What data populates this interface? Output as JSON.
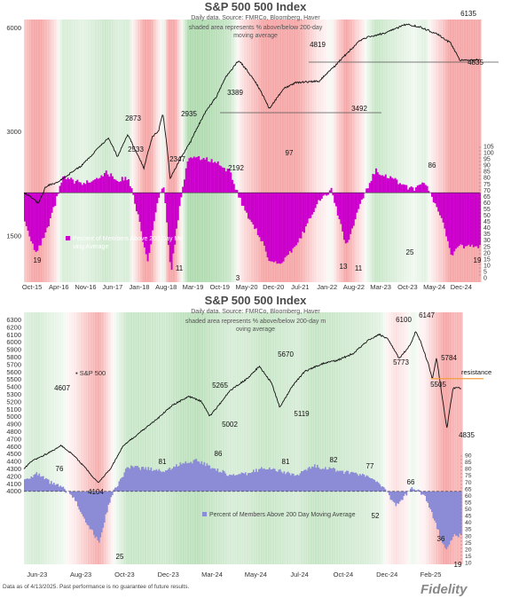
{
  "chart_data": [
    {
      "type": "line",
      "title": "S&P 500 500 Index",
      "subtitle": "Daily data.  Source: FMRCo, Bloomberg, Haver",
      "note": "shaded area represents % above/below 200-day moving average",
      "left_axis_ticks": [
        "6000",
        "3000",
        "1500"
      ],
      "right_axis_ticks": [
        "105",
        "100",
        "95",
        "90",
        "85",
        "80",
        "75",
        "70",
        "65",
        "60",
        "55",
        "50",
        "45",
        "40",
        "35",
        "30",
        "25",
        "20",
        "15",
        "10",
        "5",
        "0"
      ],
      "x_tick_labels": [
        "Oct-15",
        "Apr-16",
        "Nov-16",
        "Jun-17",
        "Jan-18",
        "Aug-18",
        "Mar-19",
        "Oct-19",
        "May-20",
        "Dec-20",
        "Jul-21",
        "Jan-22",
        "Aug-22",
        "Mar-23",
        "Oct-23",
        "May-24",
        "Dec-24"
      ],
      "price_series": {
        "name": "S&P 500",
        "x": [
          0,
          0.5,
          0.75,
          1.2,
          2,
          2.9,
          3.2,
          3.55,
          4.1,
          4.4,
          4.6,
          4.75,
          5,
          5.7,
          6.2,
          6.6,
          6.9,
          7.35,
          7.9,
          8.4,
          8.9,
          9.3,
          10.1,
          10.6,
          11.1,
          11.5,
          11.7,
          12.4,
          13.1,
          13.6,
          14.2,
          14.6,
          14.9
        ],
        "values": [
          2000,
          1860,
          2080,
          2150,
          2400,
          2873,
          2533,
          2935,
          2347,
          2900,
          3000,
          3389,
          2192,
          2800,
          3400,
          3800,
          4300,
          4819,
          4200,
          3492,
          4000,
          4150,
          4200,
          4600,
          5100,
          5500,
          5600,
          5800,
          6135,
          6000,
          5700,
          5400,
          4835
        ]
      },
      "breadth_series": {
        "name": "Percent of Members Above 200 Day Moving Average",
        "x": [
          0,
          0.4,
          0.8,
          1.3,
          2,
          2.8,
          3.2,
          3.55,
          3.9,
          4.2,
          4.5,
          4.75,
          5,
          5.3,
          5.6,
          6.2,
          6.6,
          7,
          7.5,
          8,
          8.4,
          8.8,
          9.4,
          10,
          10.5,
          11,
          11.5,
          12,
          12.5,
          12.9,
          13.3,
          13.7,
          14,
          14.3,
          14.6,
          14.9
        ],
        "values": [
          45,
          19,
          40,
          80,
          75,
          84,
          78,
          80,
          48,
          11,
          55,
          75,
          3,
          58,
          97,
          95,
          92,
          85,
          55,
          35,
          13,
          11,
          30,
          60,
          70,
          25,
          60,
          86,
          80,
          75,
          70,
          76,
          60,
          45,
          19,
          25
        ]
      },
      "annotations": [
        "6135",
        "4819",
        "4835",
        "3389",
        "3492",
        "2873",
        "2935",
        "2533",
        "2347",
        "2192",
        "97",
        "86",
        "19",
        "11",
        "3",
        "13",
        "11",
        "25",
        "19"
      ],
      "legend": "Percent of Members Above 200 Day Moving Average",
      "reference_lines": [
        3400,
        4819
      ]
    },
    {
      "type": "line",
      "title": "S&P 500 500 Index",
      "subtitle": "Daily data.  Source: FMRCo, Bloomberg, Haver",
      "note": "shaded area represents % above/below 200-day moving average",
      "left_axis_ticks": [
        "6300",
        "6200",
        "6100",
        "6000",
        "5900",
        "5800",
        "5700",
        "5600",
        "5500",
        "5400",
        "5300",
        "5200",
        "5100",
        "5000",
        "4900",
        "4800",
        "4700",
        "4600",
        "4500",
        "4400",
        "4300",
        "4200",
        "4100",
        "4000"
      ],
      "right_axis_ticks": [
        "90",
        "85",
        "80",
        "75",
        "70",
        "65",
        "60",
        "55",
        "50",
        "45",
        "40",
        "35",
        "30",
        "25",
        "20",
        "15",
        "10"
      ],
      "x_tick_labels": [
        "Jun-23",
        "Aug-23",
        "Oct-23",
        "Dec-23",
        "Mar-24",
        "May-24",
        "Jul-24",
        "Oct-24",
        "Dec-24",
        "Feb-25"
      ],
      "price_series": {
        "name": "S&P 500",
        "x": [
          0,
          0.2,
          0.6,
          0.9,
          1.2,
          1.5,
          1.8,
          2.1,
          2.4,
          2.8,
          3.2,
          3.6,
          4.0,
          4.3,
          4.5,
          4.8,
          5.0,
          5.4,
          5.7,
          6.0,
          6.2,
          6.5,
          6.8,
          7.2,
          7.6,
          8.0,
          8.3,
          8.6,
          8.8,
          9.1,
          9.35,
          9.5,
          9.65,
          9.8,
          9.9,
          10.0,
          10.1,
          10.25,
          10.4
        ],
        "values": [
          4300,
          4400,
          4510,
          4607,
          4480,
          4300,
          4104,
          4300,
          4600,
          4780,
          4950,
          5150,
          5265,
          5200,
          5002,
          5200,
          5350,
          5500,
          5670,
          5450,
          5119,
          5400,
          5600,
          5700,
          5750,
          5850,
          6000,
          6100,
          6050,
          5773,
          5950,
          6147,
          5950,
          5700,
          5505,
          5784,
          5400,
          4835,
          5380
        ]
      },
      "breadth_series": {
        "name": "Percent of Members Above 200 Day Moving Average",
        "x": [
          0,
          0.3,
          0.6,
          0.9,
          1.2,
          1.5,
          1.8,
          2.1,
          2.5,
          3,
          3.4,
          3.8,
          4.2,
          4.6,
          5,
          5.4,
          5.8,
          6.2,
          6.6,
          7,
          7.4,
          7.8,
          8.2,
          8.6,
          9,
          9.4,
          9.7,
          10,
          10.2,
          10.4
        ],
        "values": [
          72,
          76,
          70,
          66,
          58,
          40,
          25,
          60,
          81,
          80,
          78,
          84,
          86,
          80,
          75,
          76,
          81,
          78,
          75,
          82,
          80,
          77,
          75,
          70,
          52,
          66,
          60,
          36,
          19,
          30
        ]
      },
      "annotations": [
        "6147",
        "6100",
        "5784",
        "5773",
        "5670",
        "5505",
        "5265",
        "5119",
        "5002",
        "4835",
        "4607",
        "4104",
        "86",
        "81",
        "81",
        "82",
        "77",
        "76",
        "66",
        "52",
        "36",
        "25",
        "19"
      ],
      "legend": "Percent of Members Above 200 Day Moving Average",
      "price_label": "S&P 500",
      "resistance_label": "resistance",
      "resistance_level": 5500
    }
  ],
  "footer": "Data as of 4/13/2025. Past performance is no guarantee of future results.",
  "logo": "Fidelity",
  "colors": {
    "green": "#5cb85c",
    "red": "#f08080",
    "magenta": "#cc00cc",
    "lavender": "#8c8cd6",
    "price": "#111111",
    "resistance": "#f0a040"
  }
}
